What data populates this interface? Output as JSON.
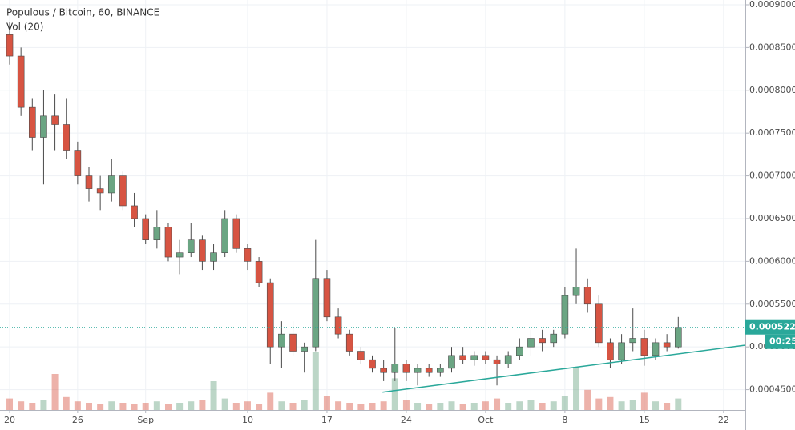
{
  "chart_data": {
    "type": "candlestick",
    "title": "Populous / Bitcoin, 60, BINANCE",
    "subtitle": "Vol (20)",
    "x": [
      0,
      1,
      2,
      3,
      4,
      5,
      6,
      7,
      8,
      9,
      10,
      11,
      12,
      13,
      14,
      15,
      16,
      17,
      18,
      19,
      20,
      21,
      22,
      23,
      24,
      25,
      26,
      27,
      28,
      29,
      30,
      31,
      32,
      33,
      34,
      35,
      36,
      37,
      38,
      39,
      40,
      41,
      42,
      43,
      44,
      45,
      46,
      47,
      48,
      49,
      50,
      51,
      52,
      53,
      54,
      55,
      56,
      57,
      58,
      59
    ],
    "open": [
      0.000865,
      0.00084,
      0.00078,
      0.000745,
      0.00077,
      0.00076,
      0.00073,
      0.0007,
      0.000685,
      0.00068,
      0.0007,
      0.000665,
      0.00065,
      0.000625,
      0.00064,
      0.000605,
      0.00061,
      0.000625,
      0.0006,
      0.00061,
      0.00065,
      0.000615,
      0.0006,
      0.000575,
      0.0005,
      0.000515,
      0.000495,
      0.0005,
      0.00058,
      0.000535,
      0.000515,
      0.000495,
      0.000485,
      0.000475,
      0.00047,
      0.00048,
      0.00047,
      0.000475,
      0.00047,
      0.000475,
      0.00049,
      0.000485,
      0.00049,
      0.000485,
      0.00048,
      0.00049,
      0.0005,
      0.00051,
      0.000505,
      0.000515,
      0.00056,
      0.00057,
      0.00055,
      0.000505,
      0.000485,
      0.000505,
      0.00051,
      0.00049,
      0.000505,
      0.0005
    ],
    "high": [
      0.00088,
      0.00085,
      0.00079,
      0.0008,
      0.000795,
      0.00079,
      0.00074,
      0.00071,
      0.0007,
      0.00072,
      0.000705,
      0.00068,
      0.000655,
      0.00066,
      0.000645,
      0.000625,
      0.000645,
      0.00063,
      0.00062,
      0.00066,
      0.000655,
      0.00062,
      0.000605,
      0.00058,
      0.00053,
      0.00053,
      0.000505,
      0.000625,
      0.00059,
      0.000545,
      0.00052,
      0.0005,
      0.00049,
      0.000485,
      0.000522,
      0.000485,
      0.00048,
      0.00048,
      0.00048,
      0.0005,
      0.0005,
      0.000495,
      0.000495,
      0.00049,
      0.000495,
      0.00051,
      0.00052,
      0.00052,
      0.00052,
      0.00057,
      0.000615,
      0.00058,
      0.00056,
      0.00051,
      0.000515,
      0.000545,
      0.00052,
      0.00051,
      0.000515,
      0.000535
    ],
    "low": [
      0.00083,
      0.00077,
      0.00073,
      0.00069,
      0.00073,
      0.00072,
      0.00069,
      0.00067,
      0.00066,
      0.00067,
      0.00066,
      0.00064,
      0.00062,
      0.000615,
      0.0006,
      0.000585,
      0.000605,
      0.00059,
      0.00059,
      0.000605,
      0.00061,
      0.00059,
      0.00057,
      0.00048,
      0.000475,
      0.00049,
      0.00047,
      0.000495,
      0.00053,
      0.00051,
      0.00049,
      0.00048,
      0.00047,
      0.00046,
      0.00046,
      0.00046,
      0.000455,
      0.000465,
      0.000465,
      0.00047,
      0.00048,
      0.000478,
      0.00048,
      0.000455,
      0.000475,
      0.000485,
      0.00049,
      0.000495,
      0.0005,
      0.00051,
      0.00055,
      0.00054,
      0.0005,
      0.000475,
      0.00048,
      0.000495,
      0.000478,
      0.000485,
      0.000495,
      0.000498
    ],
    "close": [
      0.00084,
      0.00078,
      0.000745,
      0.00077,
      0.00076,
      0.00073,
      0.0007,
      0.000685,
      0.00068,
      0.0007,
      0.000665,
      0.00065,
      0.000625,
      0.00064,
      0.000605,
      0.00061,
      0.000625,
      0.0006,
      0.00061,
      0.00065,
      0.000615,
      0.0006,
      0.000575,
      0.0005,
      0.000515,
      0.000495,
      0.0005,
      0.00058,
      0.000535,
      0.000515,
      0.000495,
      0.000485,
      0.000475,
      0.00047,
      0.00048,
      0.00047,
      0.000475,
      0.00047,
      0.000475,
      0.00049,
      0.000485,
      0.00049,
      0.000485,
      0.00048,
      0.00049,
      0.0005,
      0.00051,
      0.000505,
      0.000515,
      0.00056,
      0.00057,
      0.00055,
      0.000505,
      0.000485,
      0.000505,
      0.00051,
      0.00049,
      0.000505,
      0.0005,
      0.0005229
    ],
    "volume": [
      8,
      6,
      5,
      7,
      25,
      9,
      6,
      5,
      4,
      6,
      5,
      4,
      5,
      6,
      4,
      5,
      6,
      7,
      20,
      8,
      5,
      6,
      4,
      12,
      6,
      5,
      7,
      40,
      10,
      6,
      5,
      4,
      5,
      6,
      22,
      7,
      5,
      4,
      5,
      6,
      4,
      5,
      6,
      8,
      5,
      6,
      7,
      5,
      6,
      10,
      30,
      14,
      8,
      9,
      6,
      7,
      12,
      6,
      5,
      8
    ],
    "up_color": "#6ba583",
    "down_color": "#d75442",
    "xlim": [
      -0.85,
      64.92
    ],
    "xticks": [
      {
        "value": 0,
        "label": "20"
      },
      {
        "value": 6,
        "label": "26"
      },
      {
        "value": 12,
        "label": "Sep"
      },
      {
        "value": 21,
        "label": "10"
      },
      {
        "value": 28,
        "label": "17"
      },
      {
        "value": 35,
        "label": "24"
      },
      {
        "value": 42,
        "label": "Oct"
      },
      {
        "value": 49,
        "label": "8"
      },
      {
        "value": 56,
        "label": "15"
      },
      {
        "value": 63,
        "label": "22"
      }
    ],
    "ylim": [
      0.0004262,
      0.0009056
    ],
    "yticks": [
      {
        "value": 0.00045,
        "label": "0.0004500"
      },
      {
        "value": 0.0005,
        "label": "0.0005000"
      },
      {
        "value": 0.00055,
        "label": "0.0005500"
      },
      {
        "value": 0.0006,
        "label": "0.0006000"
      },
      {
        "value": 0.00065,
        "label": "0.0006500"
      },
      {
        "value": 0.0007,
        "label": "0.0007000"
      },
      {
        "value": 0.00075,
        "label": "0.0007500"
      },
      {
        "value": 0.0008,
        "label": "0.0008000"
      },
      {
        "value": 0.00085,
        "label": "0.0008500"
      },
      {
        "value": 0.0009,
        "label": "0.0009000"
      }
    ],
    "grid": true,
    "last_price": {
      "value": 0.0005229,
      "label": "0.0005229"
    },
    "countdown": "00:25",
    "trendline": {
      "x": [
        32.9,
        64.92
      ],
      "y": [
        0.000447,
        0.000502
      ],
      "color": "#2aa89a"
    }
  }
}
